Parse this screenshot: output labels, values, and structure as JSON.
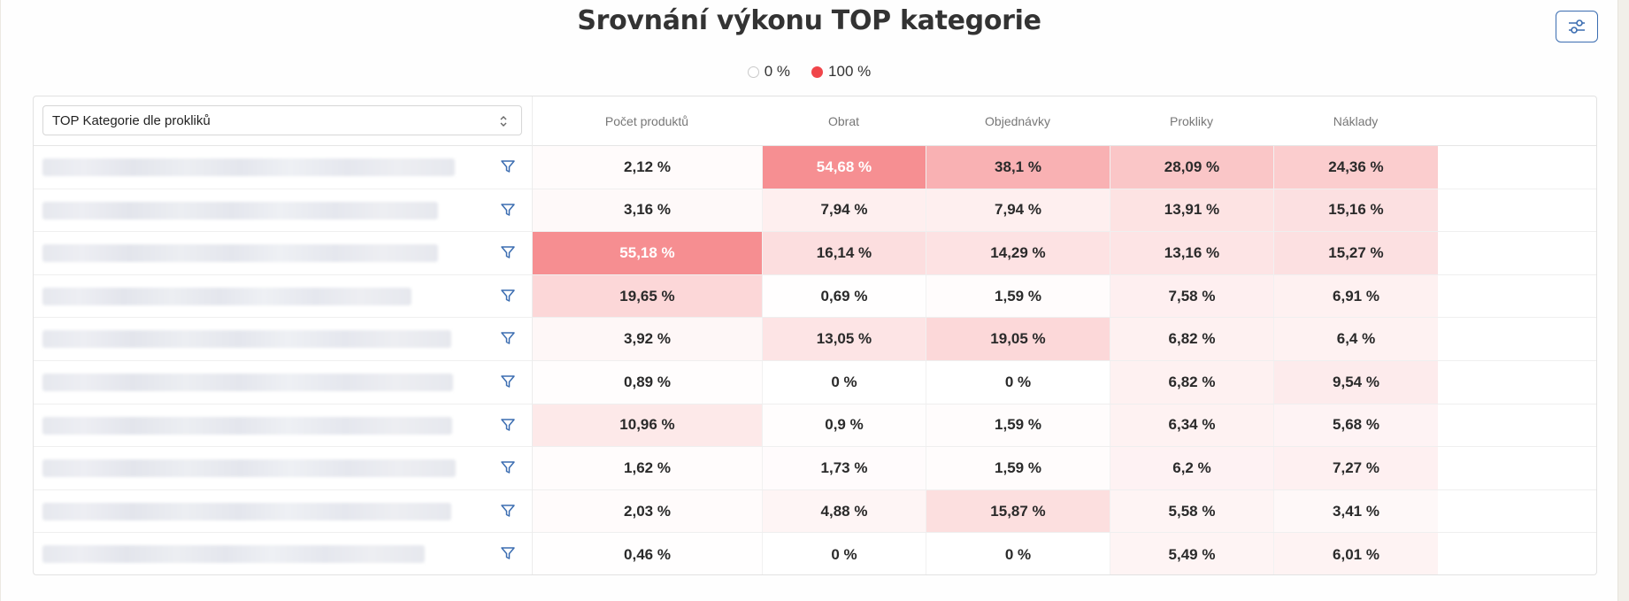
{
  "title": "Srovnání výkonu TOP kategorie",
  "settings_icon": "sliders-icon",
  "legend": {
    "min_label": "0 %",
    "max_label": "100 %",
    "min_color": "#ffffff",
    "max_color": "#f0454a"
  },
  "dimension_select": {
    "value": "TOP Kategorie dle prokliků"
  },
  "columns": [
    "Počet produktů",
    "Obrat",
    "Objednávky",
    "Prokliky",
    "Náklady"
  ],
  "rows": [
    {
      "name_hidden": true,
      "values": [
        "2,12 %",
        "54,68 %",
        "38,1 %",
        "28,09 %",
        "24,36 %"
      ],
      "pct": [
        2.12,
        54.68,
        38.1,
        28.09,
        24.36
      ]
    },
    {
      "name_hidden": true,
      "values": [
        "3,16 %",
        "7,94 %",
        "7,94 %",
        "13,91 %",
        "15,16 %"
      ],
      "pct": [
        3.16,
        7.94,
        7.94,
        13.91,
        15.16
      ]
    },
    {
      "name_hidden": true,
      "values": [
        "55,18 %",
        "16,14 %",
        "14,29 %",
        "13,16 %",
        "15,27 %"
      ],
      "pct": [
        55.18,
        16.14,
        14.29,
        13.16,
        15.27
      ]
    },
    {
      "name_hidden": true,
      "values": [
        "19,65 %",
        "0,69 %",
        "1,59 %",
        "7,58 %",
        "6,91 %"
      ],
      "pct": [
        19.65,
        0.69,
        1.59,
        7.58,
        6.91
      ]
    },
    {
      "name_hidden": true,
      "values": [
        "3,92 %",
        "13,05 %",
        "19,05 %",
        "6,82 %",
        "6,4 %"
      ],
      "pct": [
        3.92,
        13.05,
        19.05,
        6.82,
        6.4
      ]
    },
    {
      "name_hidden": true,
      "values": [
        "0,89 %",
        "0 %",
        "0 %",
        "6,82 %",
        "9,54 %"
      ],
      "pct": [
        0.89,
        0,
        0,
        6.82,
        9.54
      ]
    },
    {
      "name_hidden": true,
      "values": [
        "10,96 %",
        "0,9 %",
        "1,59 %",
        "6,34 %",
        "5,68 %"
      ],
      "pct": [
        10.96,
        0.9,
        1.59,
        6.34,
        5.68
      ]
    },
    {
      "name_hidden": true,
      "values": [
        "1,62 %",
        "1,73 %",
        "1,59 %",
        "6,2 %",
        "7,27 %"
      ],
      "pct": [
        1.62,
        1.73,
        1.59,
        6.2,
        7.27
      ]
    },
    {
      "name_hidden": true,
      "values": [
        "2,03 %",
        "4,88 %",
        "15,87 %",
        "5,58 %",
        "3,41 %"
      ],
      "pct": [
        2.03,
        4.88,
        15.87,
        5.58,
        3.41
      ]
    },
    {
      "name_hidden": true,
      "values": [
        "0,46 %",
        "0 %",
        "0 %",
        "5,49 %",
        "6,01 %"
      ],
      "pct": [
        0.46,
        0,
        0,
        5.49,
        6.01
      ]
    }
  ]
}
